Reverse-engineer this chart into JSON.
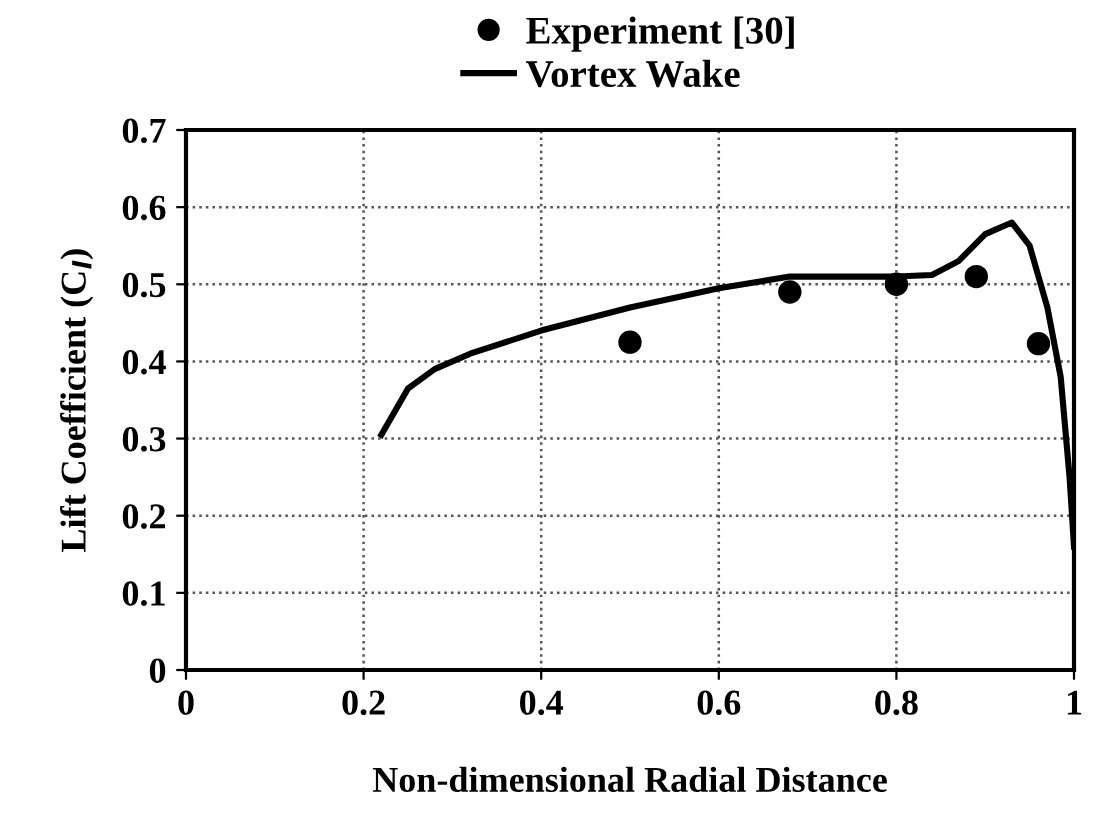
{
  "chart_data": {
    "type": "line",
    "xlabel": "Non-dimensional Radial Distance",
    "ylabel": "Lift Coefficient (C$_{l}$)",
    "series": [
      {
        "name": "Experiment [30]",
        "type": "scatter",
        "color": "#000000",
        "marker": "circle",
        "x": [
          0.5,
          0.68,
          0.8,
          0.89,
          0.96
        ],
        "values": [
          0.425,
          0.49,
          0.5,
          0.51,
          0.423
        ]
      },
      {
        "name": "Vortex Wake",
        "color": "#000000",
        "x": [
          0.22,
          0.25,
          0.28,
          0.32,
          0.4,
          0.5,
          0.6,
          0.68,
          0.8,
          0.84,
          0.87,
          0.9,
          0.93,
          0.95,
          0.97,
          0.985,
          0.995,
          1.0
        ],
        "values": [
          0.305,
          0.365,
          0.39,
          0.41,
          0.44,
          0.47,
          0.495,
          0.51,
          0.51,
          0.512,
          0.53,
          0.565,
          0.58,
          0.55,
          0.47,
          0.38,
          0.25,
          0.16
        ]
      }
    ],
    "xlim": [
      0,
      1
    ],
    "xticks": [
      0,
      0.2,
      0.4,
      0.6,
      0.8,
      1
    ],
    "ylim": [
      0,
      0.7
    ],
    "yticks": [
      0,
      0.1,
      0.2,
      0.3,
      0.4,
      0.5,
      0.6,
      0.7
    ],
    "grid": true,
    "legend": "top"
  }
}
